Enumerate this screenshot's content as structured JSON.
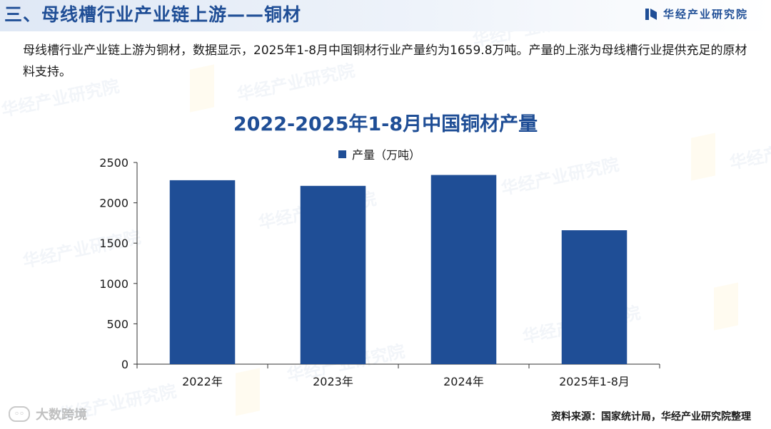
{
  "header": {
    "title": "三、母线槽行业产业链上游——铜材",
    "brand": "华经产业研究院"
  },
  "intro": "母线槽行业产业链上游为铜材，数据显示，2025年1-8月中国铜材行业产量约为1659.8万吨。产量的上涨为母线槽行业提供充足的原材料支持。",
  "watermark": "华经产业研究院",
  "footer": {
    "left_mark": "大数跨境",
    "source": "资料来源：国家统计局，华经产业研究院整理"
  },
  "colors": {
    "accent": "#1f4e96",
    "bar": "#1f4e96"
  },
  "chart_data": {
    "type": "bar",
    "title": "2022-2025年1-8月中国铜材产量",
    "categories": [
      "2022年",
      "2023年",
      "2024年",
      "2025年1-8月"
    ],
    "series": [
      {
        "name": "产量（万吨）",
        "values": [
          2280,
          2210,
          2345,
          1660
        ]
      }
    ],
    "ylim": [
      0,
      2500
    ],
    "yticks": [
      0,
      500,
      1000,
      1500,
      2000,
      2500
    ],
    "grid": false,
    "legend": "top-center"
  }
}
